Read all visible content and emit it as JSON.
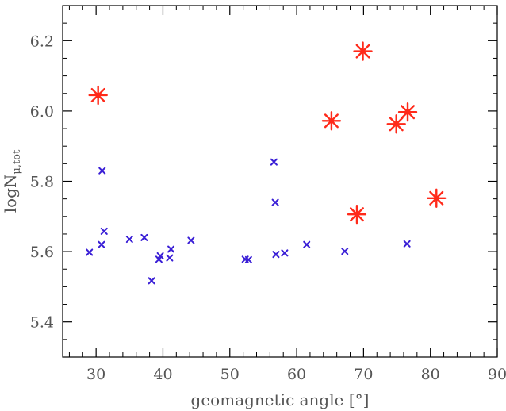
{
  "chart_data": {
    "type": "scatter",
    "title": "",
    "xlabel": "geomagnetic angle [°]",
    "ylabel_main": "logN",
    "ylabel_sub": "μ,tot",
    "xlim": [
      25,
      90
    ],
    "ylim": [
      5.3,
      6.3
    ],
    "x_major_ticks": [
      30,
      40,
      50,
      60,
      70,
      80,
      90
    ],
    "x_tick_labels": [
      "30",
      "40",
      "50",
      "60",
      "70",
      "80",
      "90"
    ],
    "x_minor_step": 2,
    "y_major_ticks": [
      5.4,
      5.6,
      5.8,
      6.0,
      6.2
    ],
    "y_tick_labels": [
      "5.4",
      "5.6",
      "5.8",
      "6.0",
      "6.2"
    ],
    "y_minor_step": 0.05,
    "grid": false,
    "series": [
      {
        "marker": "x",
        "color": "#3a1fd6",
        "points": [
          [
            29.0,
            5.598
          ],
          [
            30.8,
            5.62
          ],
          [
            30.9,
            5.83
          ],
          [
            31.2,
            5.658
          ],
          [
            35.0,
            5.635
          ],
          [
            37.2,
            5.64
          ],
          [
            38.3,
            5.517
          ],
          [
            39.4,
            5.578
          ],
          [
            39.6,
            5.588
          ],
          [
            41.0,
            5.582
          ],
          [
            41.2,
            5.607
          ],
          [
            44.2,
            5.632
          ],
          [
            52.3,
            5.578
          ],
          [
            52.8,
            5.577
          ],
          [
            56.6,
            5.855
          ],
          [
            56.8,
            5.74
          ],
          [
            56.9,
            5.592
          ],
          [
            58.2,
            5.596
          ],
          [
            61.5,
            5.62
          ],
          [
            67.2,
            5.601
          ],
          [
            76.5,
            5.622
          ]
        ]
      },
      {
        "marker": "asterisk",
        "color": "#ff2a1a",
        "points": [
          [
            30.3,
            6.045
          ],
          [
            65.2,
            5.972
          ],
          [
            69.0,
            5.706
          ],
          [
            69.9,
            6.17
          ],
          [
            74.9,
            5.963
          ],
          [
            76.6,
            5.997
          ],
          [
            80.9,
            5.752
          ]
        ]
      }
    ]
  }
}
